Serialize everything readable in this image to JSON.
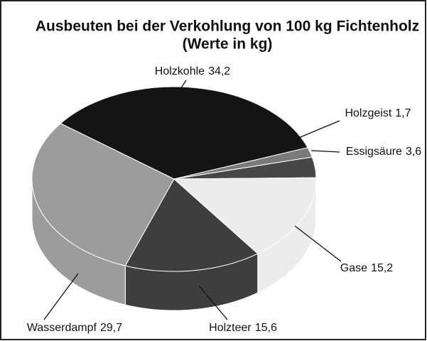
{
  "chart_data": {
    "type": "pie",
    "title": "Ausbeuten bei der Verkohlung von 100 kg Fichtenholz",
    "subtitle": "(Werte in kg)",
    "categories": [
      "Holzkohle",
      "Holzgeist",
      "Essigsäure",
      "Gase",
      "Holzteer",
      "Wasserdampf"
    ],
    "values": [
      34.2,
      1.7,
      3.6,
      15.2,
      15.6,
      29.7
    ],
    "value_labels": [
      "34,2",
      "1,7",
      "3,6",
      "15,2",
      "15,6",
      "29,7"
    ],
    "colors": [
      "#141414",
      "#7a7a7a",
      "#474747",
      "#ececec",
      "#3e3e3e",
      "#9c9c9c"
    ]
  }
}
